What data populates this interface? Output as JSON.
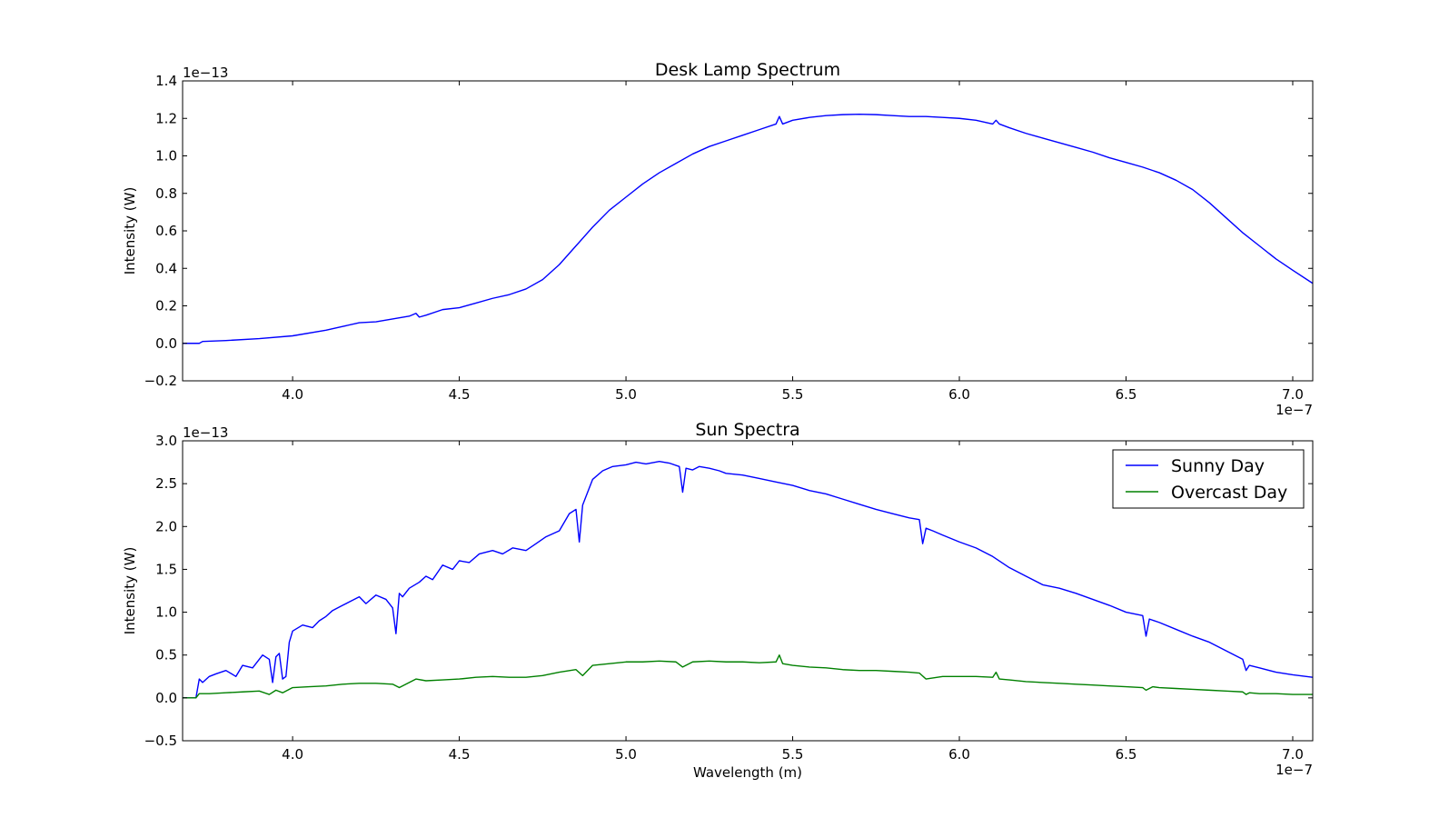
{
  "figure": {
    "background": "#ffffff"
  },
  "chart_data": [
    {
      "type": "line",
      "title": "Desk Lamp Spectrum",
      "xlabel": "",
      "ylabel": "Intensity (W)",
      "x_offset_text": "1e−7",
      "y_offset_text": "1e−13",
      "xlim": [
        3.67,
        7.06
      ],
      "ylim": [
        -0.2,
        1.4
      ],
      "xticks": [
        4.0,
        4.5,
        5.0,
        5.5,
        6.0,
        6.5,
        7.0
      ],
      "xtick_labels": [
        "4.0",
        "4.5",
        "5.0",
        "5.5",
        "6.0",
        "6.5",
        "7.0"
      ],
      "yticks": [
        -0.2,
        0.0,
        0.2,
        0.4,
        0.6,
        0.8,
        1.0,
        1.2,
        1.4
      ],
      "ytick_labels": [
        "−0.2",
        "0.0",
        "0.2",
        "0.4",
        "0.6",
        "0.8",
        "1.0",
        "1.2",
        "1.4"
      ],
      "grid": false,
      "series": [
        {
          "color": "#0000ff",
          "x": [
            3.67,
            3.72,
            3.73,
            3.8,
            3.9,
            4.0,
            4.1,
            4.15,
            4.2,
            4.25,
            4.3,
            4.35,
            4.37,
            4.38,
            4.4,
            4.45,
            4.5,
            4.55,
            4.6,
            4.65,
            4.7,
            4.75,
            4.8,
            4.85,
            4.9,
            4.95,
            5.0,
            5.05,
            5.1,
            5.15,
            5.2,
            5.25,
            5.3,
            5.35,
            5.4,
            5.45,
            5.46,
            5.47,
            5.5,
            5.55,
            5.6,
            5.65,
            5.7,
            5.75,
            5.8,
            5.85,
            5.9,
            5.95,
            6.0,
            6.05,
            6.1,
            6.11,
            6.12,
            6.15,
            6.2,
            6.25,
            6.3,
            6.35,
            6.4,
            6.45,
            6.5,
            6.55,
            6.6,
            6.65,
            6.7,
            6.75,
            6.8,
            6.85,
            6.9,
            6.95,
            7.0,
            7.06
          ],
          "y": [
            0.0,
            0.0,
            0.01,
            0.015,
            0.025,
            0.04,
            0.07,
            0.09,
            0.11,
            0.115,
            0.13,
            0.145,
            0.16,
            0.14,
            0.15,
            0.18,
            0.19,
            0.215,
            0.24,
            0.26,
            0.29,
            0.34,
            0.42,
            0.52,
            0.62,
            0.71,
            0.78,
            0.85,
            0.91,
            0.96,
            1.01,
            1.05,
            1.08,
            1.11,
            1.14,
            1.17,
            1.21,
            1.17,
            1.19,
            1.205,
            1.215,
            1.22,
            1.222,
            1.22,
            1.215,
            1.21,
            1.21,
            1.205,
            1.2,
            1.19,
            1.17,
            1.19,
            1.17,
            1.15,
            1.12,
            1.095,
            1.07,
            1.045,
            1.02,
            0.99,
            0.965,
            0.94,
            0.91,
            0.87,
            0.82,
            0.75,
            0.67,
            0.59,
            0.52,
            0.45,
            0.39,
            0.32
          ]
        }
      ]
    },
    {
      "type": "line",
      "title": "Sun Spectra",
      "xlabel": "Wavelength (m)",
      "ylabel": "Intensity (W)",
      "x_offset_text": "1e−7",
      "y_offset_text": "1e−13",
      "xlim": [
        3.67,
        7.06
      ],
      "ylim": [
        -0.5,
        3.0
      ],
      "xticks": [
        4.0,
        4.5,
        5.0,
        5.5,
        6.0,
        6.5,
        7.0
      ],
      "xtick_labels": [
        "4.0",
        "4.5",
        "5.0",
        "5.5",
        "6.0",
        "6.5",
        "7.0"
      ],
      "yticks": [
        -0.5,
        0.0,
        0.5,
        1.0,
        1.5,
        2.0,
        2.5,
        3.0
      ],
      "ytick_labels": [
        "−0.5",
        "0.0",
        "0.5",
        "1.0",
        "1.5",
        "2.0",
        "2.5",
        "3.0"
      ],
      "grid": false,
      "legend_position": "top-right",
      "series": [
        {
          "name": "Sunny Day",
          "color": "#0000ff",
          "x": [
            3.67,
            3.71,
            3.72,
            3.73,
            3.75,
            3.77,
            3.8,
            3.83,
            3.85,
            3.88,
            3.91,
            3.93,
            3.94,
            3.95,
            3.96,
            3.97,
            3.98,
            3.99,
            4.0,
            4.03,
            4.06,
            4.08,
            4.1,
            4.12,
            4.15,
            4.17,
            4.2,
            4.22,
            4.25,
            4.28,
            4.3,
            4.31,
            4.32,
            4.33,
            4.35,
            4.38,
            4.4,
            4.42,
            4.45,
            4.48,
            4.5,
            4.53,
            4.56,
            4.6,
            4.63,
            4.66,
            4.7,
            4.73,
            4.76,
            4.8,
            4.83,
            4.85,
            4.86,
            4.87,
            4.88,
            4.9,
            4.93,
            4.96,
            5.0,
            5.03,
            5.06,
            5.1,
            5.13,
            5.16,
            5.17,
            5.18,
            5.2,
            5.22,
            5.25,
            5.28,
            5.3,
            5.35,
            5.4,
            5.45,
            5.5,
            5.55,
            5.6,
            5.65,
            5.7,
            5.75,
            5.8,
            5.85,
            5.88,
            5.89,
            5.9,
            5.92,
            5.95,
            6.0,
            6.05,
            6.1,
            6.15,
            6.2,
            6.25,
            6.3,
            6.35,
            6.4,
            6.45,
            6.5,
            6.55,
            6.56,
            6.57,
            6.6,
            6.65,
            6.7,
            6.75,
            6.8,
            6.85,
            6.86,
            6.87,
            6.9,
            6.95,
            7.0,
            7.06
          ],
          "y": [
            0.0,
            0.0,
            0.22,
            0.18,
            0.25,
            0.28,
            0.32,
            0.25,
            0.38,
            0.35,
            0.5,
            0.45,
            0.18,
            0.48,
            0.52,
            0.22,
            0.25,
            0.65,
            0.78,
            0.85,
            0.82,
            0.9,
            0.95,
            1.02,
            1.08,
            1.12,
            1.18,
            1.1,
            1.2,
            1.15,
            1.05,
            0.75,
            1.22,
            1.18,
            1.28,
            1.35,
            1.42,
            1.38,
            1.55,
            1.5,
            1.6,
            1.58,
            1.68,
            1.72,
            1.68,
            1.75,
            1.72,
            1.8,
            1.88,
            1.95,
            2.15,
            2.2,
            1.82,
            2.25,
            2.35,
            2.55,
            2.65,
            2.7,
            2.72,
            2.75,
            2.73,
            2.76,
            2.74,
            2.7,
            2.4,
            2.68,
            2.66,
            2.7,
            2.68,
            2.65,
            2.62,
            2.6,
            2.56,
            2.52,
            2.48,
            2.42,
            2.38,
            2.32,
            2.26,
            2.2,
            2.15,
            2.1,
            2.08,
            1.8,
            1.98,
            1.95,
            1.9,
            1.82,
            1.75,
            1.65,
            1.52,
            1.42,
            1.32,
            1.28,
            1.22,
            1.15,
            1.08,
            1.0,
            0.96,
            0.72,
            0.92,
            0.88,
            0.8,
            0.72,
            0.65,
            0.55,
            0.45,
            0.32,
            0.38,
            0.35,
            0.3,
            0.27,
            0.24
          ]
        },
        {
          "name": "Overcast Day",
          "color": "#008000",
          "x": [
            3.67,
            3.71,
            3.72,
            3.75,
            3.8,
            3.85,
            3.9,
            3.93,
            3.95,
            3.97,
            4.0,
            4.05,
            4.1,
            4.15,
            4.2,
            4.25,
            4.3,
            4.32,
            4.35,
            4.37,
            4.4,
            4.45,
            4.5,
            4.55,
            4.6,
            4.65,
            4.7,
            4.75,
            4.8,
            4.85,
            4.87,
            4.9,
            4.95,
            5.0,
            5.05,
            5.1,
            5.15,
            5.17,
            5.2,
            5.25,
            5.3,
            5.35,
            5.4,
            5.45,
            5.46,
            5.47,
            5.5,
            5.55,
            5.6,
            5.65,
            5.7,
            5.75,
            5.8,
            5.85,
            5.88,
            5.9,
            5.95,
            6.0,
            6.05,
            6.1,
            6.11,
            6.12,
            6.15,
            6.2,
            6.25,
            6.3,
            6.35,
            6.4,
            6.45,
            6.5,
            6.55,
            6.56,
            6.58,
            6.6,
            6.65,
            6.7,
            6.75,
            6.8,
            6.85,
            6.86,
            6.87,
            6.9,
            6.95,
            7.0,
            7.06
          ],
          "y": [
            0.0,
            0.0,
            0.05,
            0.05,
            0.06,
            0.07,
            0.08,
            0.04,
            0.09,
            0.06,
            0.12,
            0.13,
            0.14,
            0.16,
            0.17,
            0.17,
            0.16,
            0.12,
            0.18,
            0.22,
            0.2,
            0.21,
            0.22,
            0.24,
            0.25,
            0.24,
            0.24,
            0.26,
            0.3,
            0.33,
            0.26,
            0.38,
            0.4,
            0.42,
            0.42,
            0.43,
            0.42,
            0.36,
            0.42,
            0.43,
            0.42,
            0.42,
            0.41,
            0.42,
            0.5,
            0.4,
            0.38,
            0.36,
            0.35,
            0.33,
            0.32,
            0.32,
            0.31,
            0.3,
            0.29,
            0.22,
            0.25,
            0.25,
            0.25,
            0.24,
            0.3,
            0.22,
            0.21,
            0.19,
            0.18,
            0.17,
            0.16,
            0.15,
            0.14,
            0.13,
            0.12,
            0.09,
            0.13,
            0.12,
            0.11,
            0.1,
            0.09,
            0.08,
            0.07,
            0.04,
            0.06,
            0.05,
            0.05,
            0.04,
            0.04
          ]
        }
      ]
    }
  ]
}
